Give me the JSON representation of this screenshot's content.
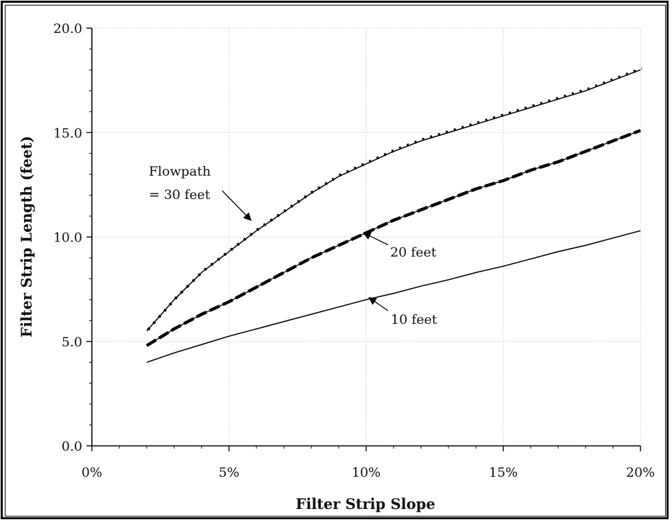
{
  "chart_data": {
    "type": "line",
    "title": "",
    "xlabel": "Filter Strip Slope",
    "ylabel": "Filter Strip Length (feet)",
    "xlim": [
      0,
      20
    ],
    "ylim": [
      0,
      20
    ],
    "x_ticks": [
      0,
      5,
      10,
      15,
      20
    ],
    "x_tick_labels": [
      "0%",
      "5%",
      "10%",
      "15%",
      "20%"
    ],
    "y_ticks": [
      0,
      5,
      10,
      15,
      20
    ],
    "y_tick_labels": [
      "0.0",
      "5.0",
      "10.0",
      "15.0",
      "20.0"
    ],
    "grid": true,
    "series": [
      {
        "name": "Flowpath = 30 feet",
        "x": [
          2,
          3,
          4,
          5,
          6,
          7,
          8,
          9,
          10,
          11,
          12,
          13,
          14,
          15,
          16,
          17,
          18,
          19,
          20
        ],
        "y": [
          5.5,
          7.0,
          8.3,
          9.3,
          10.3,
          11.2,
          12.1,
          12.9,
          13.5,
          14.1,
          14.6,
          15.0,
          15.4,
          15.8,
          16.2,
          16.6,
          17.0,
          17.5,
          18.0
        ]
      },
      {
        "name": "20 feet",
        "x": [
          2,
          3,
          4,
          5,
          6,
          7,
          8,
          9,
          10,
          11,
          12,
          13,
          14,
          15,
          16,
          17,
          18,
          19,
          20
        ],
        "y": [
          4.8,
          5.6,
          6.3,
          6.9,
          7.6,
          8.3,
          9.0,
          9.6,
          10.2,
          10.8,
          11.3,
          11.8,
          12.3,
          12.7,
          13.2,
          13.6,
          14.1,
          14.6,
          15.1
        ]
      },
      {
        "name": "10 feet",
        "x": [
          2,
          3,
          4,
          5,
          6,
          7,
          8,
          9,
          10,
          11,
          12,
          13,
          14,
          15,
          16,
          17,
          18,
          19,
          20
        ],
        "y": [
          4.0,
          4.45,
          4.85,
          5.25,
          5.6,
          5.95,
          6.3,
          6.65,
          7.0,
          7.3,
          7.65,
          7.95,
          8.3,
          8.6,
          8.95,
          9.3,
          9.6,
          9.95,
          10.3
        ]
      }
    ],
    "annotations": [
      {
        "lines": [
          "Flowpath",
          "=  30 feet"
        ],
        "arrow_to": [
          5.8,
          10.8
        ]
      },
      {
        "lines": [
          "20 feet"
        ],
        "arrow_to": [
          9.9,
          10.2
        ]
      },
      {
        "lines": [
          "10 feet"
        ],
        "arrow_to": [
          10.1,
          7.1
        ]
      }
    ]
  }
}
